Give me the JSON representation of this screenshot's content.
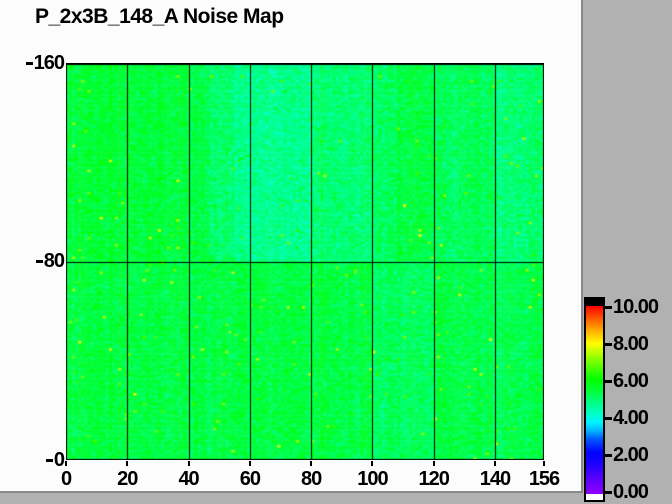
{
  "window": {
    "background_color": "#b1b1b1",
    "canvas_color": "#fcfcfc"
  },
  "chart_data": {
    "type": "heatmap",
    "title": "P_2x3B_148_A Noise Map",
    "xlabel": "",
    "ylabel": "",
    "x_range": [
      0,
      156
    ],
    "y_range": [
      0,
      160
    ],
    "x_ticks": [
      "0",
      "20",
      "40",
      "60",
      "80",
      "100",
      "120",
      "140",
      "156"
    ],
    "x_tick_values": [
      0,
      20,
      40,
      60,
      80,
      100,
      120,
      140,
      156
    ],
    "y_ticks": [
      "160",
      "80",
      "0"
    ],
    "y_tick_values": [
      160,
      80,
      0
    ],
    "grid": {
      "x_interval": 20,
      "y_lines": [
        80
      ],
      "color": "#000000"
    },
    "cols": 156,
    "rows": 160,
    "colorbar": {
      "min": 0,
      "max": 10,
      "tick_labels": [
        "10.00",
        "8.00",
        "6.00",
        "4.00",
        "2.00",
        "0.00"
      ],
      "tick_values": [
        10,
        8,
        6,
        4,
        2,
        0
      ],
      "over_color": "#000000",
      "under_color": "#ffffff",
      "stops": [
        [
          0,
          "#9000FF"
        ],
        [
          0.8,
          "#5A00FF"
        ],
        [
          1.6,
          "#1E00FF"
        ],
        [
          2.2,
          "#0000FF"
        ],
        [
          2.9,
          "#0055FF"
        ],
        [
          3.4,
          "#00BBFF"
        ],
        [
          3.8,
          "#00F2FF"
        ],
        [
          4.2,
          "#00FFD0"
        ],
        [
          4.8,
          "#00FF8C"
        ],
        [
          5.5,
          "#00FF37"
        ],
        [
          6.1,
          "#00FF00"
        ],
        [
          6.6,
          "#40FF00"
        ],
        [
          7.2,
          "#8CFF00"
        ],
        [
          8,
          "#FFFF00"
        ],
        [
          8.8,
          "#FFA000"
        ],
        [
          9.4,
          "#FF5000"
        ],
        [
          10,
          "#FF0000"
        ]
      ]
    },
    "noise_model": {
      "seed": 987654321,
      "base_mean": 5.42,
      "pixel_std": 0.22,
      "col_std": 0.07,
      "hot_fraction": 0.012,
      "hot_min": 0.7,
      "hot_span": 1.6,
      "bands": [
        {
          "c": [
            0,
            40
          ],
          "r": [
            80,
            160
          ],
          "mean": 5.5
        },
        {
          "c": [
            47,
            55
          ],
          "r": [
            80,
            160
          ],
          "mean": 5.1
        },
        {
          "c": [
            55,
            80
          ],
          "r": [
            80,
            160
          ],
          "mean": 4.78
        },
        {
          "c": [
            80,
            100
          ],
          "r": [
            80,
            160
          ],
          "mean": 5.05
        },
        {
          "c": [
            100,
            108
          ],
          "r": [
            80,
            160
          ],
          "mean": 5.15
        },
        {
          "c": [
            120,
            140
          ],
          "r": [
            80,
            160
          ],
          "mean": 5.2
        },
        {
          "c": [
            140,
            156
          ],
          "r": [
            80,
            160
          ],
          "mean": 5.0
        },
        {
          "c": [
            100,
            120
          ],
          "r": [
            0,
            80
          ],
          "mean": 5.18
        },
        {
          "c": [
            128,
            156
          ],
          "r": [
            0,
            80
          ],
          "mean": 5.3
        }
      ]
    }
  }
}
